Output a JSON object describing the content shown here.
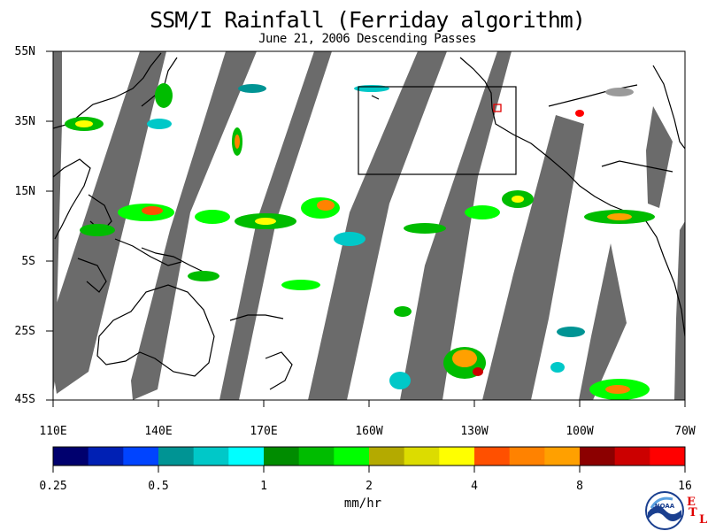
{
  "title": "SSM/I Rainfall (Ferriday algorithm)",
  "subtitle": "June 21, 2006  Descending Passes",
  "lat_labels": [
    "55N",
    "35N",
    "15N",
    "5S",
    "25S",
    "45S"
  ],
  "lon_labels": [
    "110E",
    "140E",
    "170E",
    "160W",
    "130W",
    "100W",
    "70W"
  ],
  "colorbar": {
    "colors": [
      "#00006e",
      "#0020b4",
      "#0044ff",
      "#009494",
      "#00c8c8",
      "#00ffff",
      "#008c00",
      "#00bc00",
      "#00ff00",
      "#b4aa00",
      "#dcdc00",
      "#ffff00",
      "#ff5000",
      "#ff8200",
      "#ffa000",
      "#8c0000",
      "#cc0000",
      "#ff0000"
    ],
    "tick_labels": [
      "0.25",
      "0.5",
      "1",
      "2",
      "4",
      "8",
      "16"
    ],
    "units": "mm/hr"
  },
  "colors": {
    "swath_gap": "#6b6b6b",
    "land_outline": "#000000",
    "box": "#000000",
    "marker": "#e00000"
  },
  "logo": {
    "name": "NOAA",
    "text": "NOAA"
  },
  "corner_mark": {
    "e": "E",
    "t": "T",
    "l": "L"
  }
}
